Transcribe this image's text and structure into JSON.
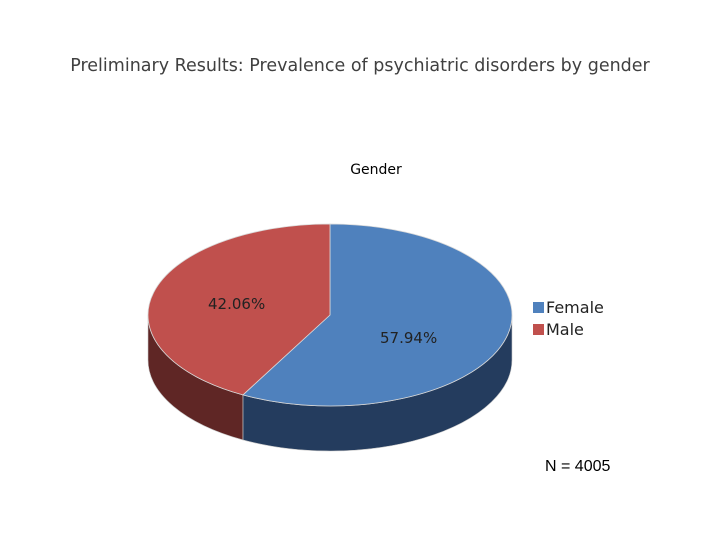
{
  "page_title": "Preliminary Results: Prevalence of psychiatric disorders by gender",
  "n_label": "N = 4005",
  "colors": {
    "female_top": "#4f81bd",
    "female_side": "#243c5e",
    "male_top": "#c0504d",
    "male_side": "#5f2625"
  },
  "chart_data": {
    "type": "pie",
    "title": "Gender",
    "three_d": true,
    "legend_position": "right",
    "slices": [
      {
        "name": "Female",
        "value": 57.94,
        "label": "57.94%"
      },
      {
        "name": "Male",
        "value": 42.06,
        "label": "42.06%"
      }
    ]
  }
}
